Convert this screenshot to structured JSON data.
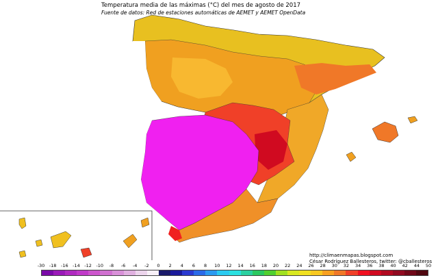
{
  "title": "Temperatura media de las máximas (°C) del mes de agosto de 2017",
  "subtitle": "Fuente de datos: Red de estaciones automáticas de AEMET y AEMET OpenData",
  "credits": {
    "url": "http://climaenmapas.blogspot.com",
    "author": "César Rodríguez Ballesteros, twitter: @cballesteros"
  },
  "legend": {
    "labels": [
      "-30",
      "-18",
      "-16",
      "-14",
      "-12",
      "-10",
      "-8",
      "-6",
      "-4",
      "-2",
      "0",
      "2",
      "4",
      "6",
      "8",
      "10",
      "12",
      "14",
      "16",
      "18",
      "20",
      "22",
      "24",
      "26",
      "28",
      "30",
      "32",
      "34",
      "36",
      "38",
      "40",
      "42",
      "44",
      "50"
    ],
    "colors": [
      "#7a0aa8",
      "#9a1ab8",
      "#b02ac0",
      "#c03ac8",
      "#cc55cc",
      "#d070d0",
      "#d890d8",
      "#e0b0e0",
      "#ecd4ec",
      "#f8f0f8",
      "#1a1a6a",
      "#1a1a9a",
      "#2a3ad0",
      "#2a6ae8",
      "#2a9af0",
      "#2acaf0",
      "#2ae0e0",
      "#2ad0a0",
      "#2ac860",
      "#50d030",
      "#a0e020",
      "#d8e820",
      "#f0e020",
      "#f8c820",
      "#f8a020",
      "#f07828",
      "#f04028",
      "#f01020",
      "#d00a20",
      "#b00a20",
      "#900a20",
      "#700818",
      "#500810"
    ]
  },
  "regions": [
    {
      "name": "north-coast",
      "color": "#e8c020"
    },
    {
      "name": "plateau-north",
      "color": "#f0a020"
    },
    {
      "name": "plateau-north-inner",
      "color": "#f8b830"
    },
    {
      "name": "ebro-valley",
      "color": "#f07828"
    },
    {
      "name": "mediterranean-coast",
      "color": "#f0a828"
    },
    {
      "name": "center-east",
      "color": "#f04028"
    },
    {
      "name": "southwest-hot",
      "color": "#f020f0"
    },
    {
      "name": "south-coast",
      "color": "#f09028"
    },
    {
      "name": "balearic",
      "color": "#f07828"
    },
    {
      "name": "canarias",
      "color": "#f0c020"
    }
  ]
}
